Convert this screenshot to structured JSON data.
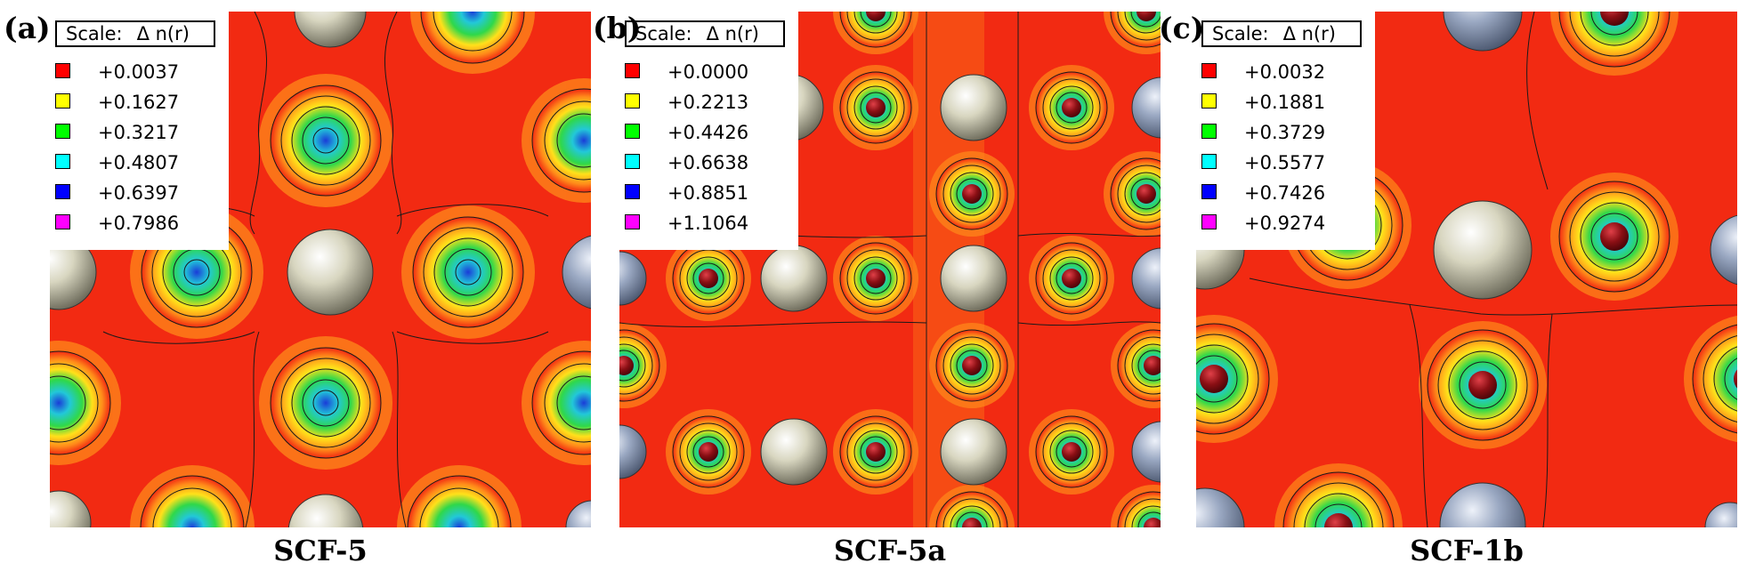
{
  "panels": [
    {
      "id": "a",
      "label": "(a)",
      "caption": "SCF-5",
      "scale_title": "Scale:",
      "scale_symbol": "Δ n(r)",
      "legend": [
        {
          "value": "+0.0037",
          "color": "#ff0000"
        },
        {
          "value": "+0.1627",
          "color": "#ffff00"
        },
        {
          "value": "+0.3217",
          "color": "#00ff00"
        },
        {
          "value": "+0.4807",
          "color": "#00ffff"
        },
        {
          "value": "+0.6397",
          "color": "#0000ff"
        },
        {
          "value": "+0.7986",
          "color": "#ff00ff"
        }
      ]
    },
    {
      "id": "b",
      "label": "(b)",
      "caption": "SCF-5a",
      "scale_title": "Scale:",
      "scale_symbol": "Δ n(r)",
      "legend": [
        {
          "value": "+0.0000",
          "color": "#ff0000"
        },
        {
          "value": "+0.2213",
          "color": "#ffff00"
        },
        {
          "value": "+0.4426",
          "color": "#00ff00"
        },
        {
          "value": "+0.6638",
          "color": "#00ffff"
        },
        {
          "value": "+0.8851",
          "color": "#0000ff"
        },
        {
          "value": "+1.1064",
          "color": "#ff00ff"
        }
      ]
    },
    {
      "id": "c",
      "label": "(c)",
      "caption": "SCF-1b",
      "scale_title": "Scale:",
      "scale_symbol": "Δ n(r)",
      "legend": [
        {
          "value": "+0.0032",
          "color": "#ff0000"
        },
        {
          "value": "+0.1881",
          "color": "#ffff00"
        },
        {
          "value": "+0.3729",
          "color": "#00ff00"
        },
        {
          "value": "+0.5577",
          "color": "#00ffff"
        },
        {
          "value": "+0.7426",
          "color": "#0000ff"
        },
        {
          "value": "+0.9274",
          "color": "#ff00ff"
        }
      ]
    }
  ],
  "colors": {
    "background_field": "#f22a12",
    "contour_ring": "#ff8a1a",
    "contour_yellow": "#ffe11a",
    "contour_green": "#2fd84a",
    "contour_cyan": "#22c8d8",
    "contour_blue": "#1a3cd8",
    "atom_cream": "#d8d6c0",
    "atom_blue": "#9aa8c2",
    "atom_core": "#8a0f14"
  }
}
